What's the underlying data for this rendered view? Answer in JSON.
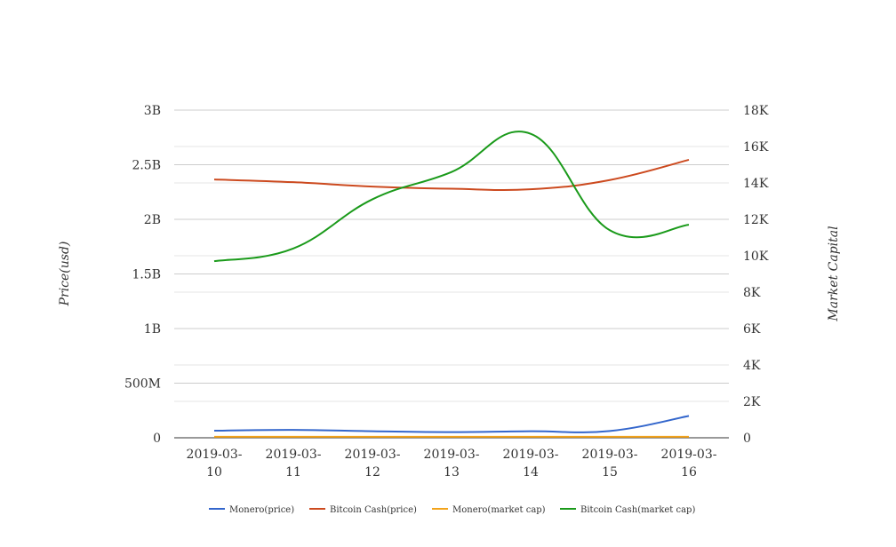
{
  "chart_data": {
    "type": "line",
    "title": "",
    "x": [
      "2019-03-10",
      "2019-03-11",
      "2019-03-12",
      "2019-03-13",
      "2019-03-14",
      "2019-03-15",
      "2019-03-16"
    ],
    "x_tick_labels": [
      [
        "2019-03-",
        "10"
      ],
      [
        "2019-03-",
        "11"
      ],
      [
        "2019-03-",
        "12"
      ],
      [
        "2019-03-",
        "13"
      ],
      [
        "2019-03-",
        "14"
      ],
      [
        "2019-03-",
        "15"
      ],
      [
        "2019-03-",
        "16"
      ]
    ],
    "y_left": {
      "label": "Price(usd)",
      "range": [
        0,
        3000000000
      ],
      "ticks": [
        0,
        500000000,
        1000000000,
        1500000000,
        2000000000,
        2500000000,
        3000000000
      ],
      "tick_labels": [
        "0",
        "500M",
        "1B",
        "1.5B",
        "2B",
        "2.5B",
        "3B"
      ]
    },
    "y_right": {
      "label": "Market Capital",
      "range": [
        0,
        18000
      ],
      "ticks": [
        0,
        2000,
        4000,
        6000,
        8000,
        10000,
        12000,
        14000,
        16000,
        18000
      ],
      "tick_labels": [
        "0",
        "2K",
        "4K",
        "6K",
        "8K",
        "10K",
        "12K",
        "14K",
        "16K",
        "18K"
      ]
    },
    "series": [
      {
        "name": "Monero(price)",
        "axis": "left",
        "color": "#3366cc",
        "values": [
          65000000,
          72000000,
          60000000,
          52000000,
          60000000,
          62000000,
          200000000
        ]
      },
      {
        "name": "Bitcoin Cash(price)",
        "axis": "left",
        "color": "#cc4a1f",
        "values": [
          2365000000,
          2340000000,
          2300000000,
          2280000000,
          2275000000,
          2360000000,
          2545000000
        ]
      },
      {
        "name": "Monero(market cap)",
        "axis": "right",
        "color": "#f2a31b",
        "values": [
          55,
          55,
          55,
          55,
          55,
          55,
          55
        ]
      },
      {
        "name": "Bitcoin Cash(market cap)",
        "axis": "right",
        "color": "#1a9a1a",
        "values": [
          9700,
          10400,
          13100,
          14600,
          16700,
          11400,
          11700
        ]
      }
    ],
    "grid": true,
    "legend": "bottom"
  }
}
